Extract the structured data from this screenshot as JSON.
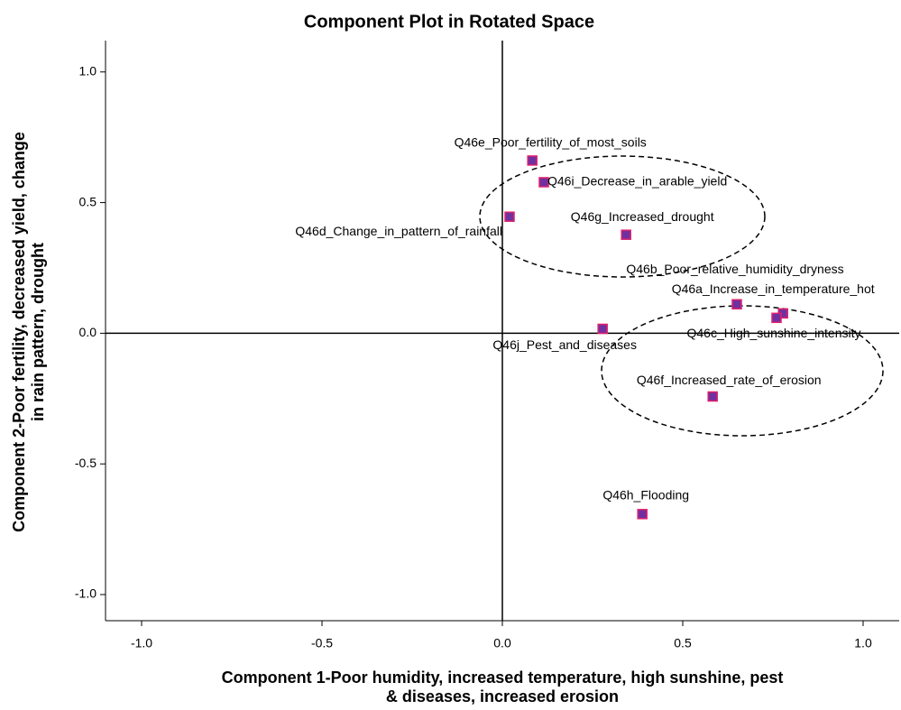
{
  "chart_data": {
    "type": "scatter",
    "title": "Component Plot in Rotated Space",
    "x_label": [
      "Component 1-Poor humidity, increased temperature, high sunshine, pest",
      "& diseases, increased erosion"
    ],
    "y_label": [
      "Component 2-Poor fertility, decreased yield, change",
      "in rain pattern, drought"
    ],
    "point_labels": [
      "Q46e_Poor_fertility_of_most_soils",
      "Q46i_Decrease_in_arable_yield",
      "Q46d_Change_in_pattern_of_rainfall",
      "Q46g_Increased_drought",
      "Q46b_Poor_relative_humidity_dryness",
      "Q46a_Increase_in_temperature_hot",
      "Q46c_High_sunshine_intensity",
      "Q46j_Pest_and_diseases",
      "Q46f_Increased_rate_of_erosion",
      "Q46h_Flooding"
    ],
    "x": [
      0.083,
      0.115,
      0.02,
      0.343,
      0.65,
      0.778,
      0.76,
      0.278,
      0.583,
      0.388
    ],
    "y": [
      0.661,
      0.578,
      0.446,
      0.377,
      0.111,
      0.076,
      0.059,
      0.017,
      -0.242,
      -0.692
    ],
    "color": "#7030a0",
    "edge_color": "#e0206a",
    "xlim": [
      -1.1,
      1.1
    ],
    "ylim": [
      -1.1,
      1.12
    ],
    "xticks": [
      {
        "value": -1,
        "label": "-1.0"
      },
      -0.5,
      {
        "value": 0,
        "label": "0.0"
      },
      0.5,
      {
        "value": 1,
        "label": "1.0"
      }
    ],
    "yticks": [
      {
        "value": -1,
        "label": "-1.0"
      },
      -0.5,
      {
        "value": 0,
        "label": "0.0"
      },
      0.5,
      {
        "value": 1,
        "label": "1.0"
      }
    ]
  }
}
